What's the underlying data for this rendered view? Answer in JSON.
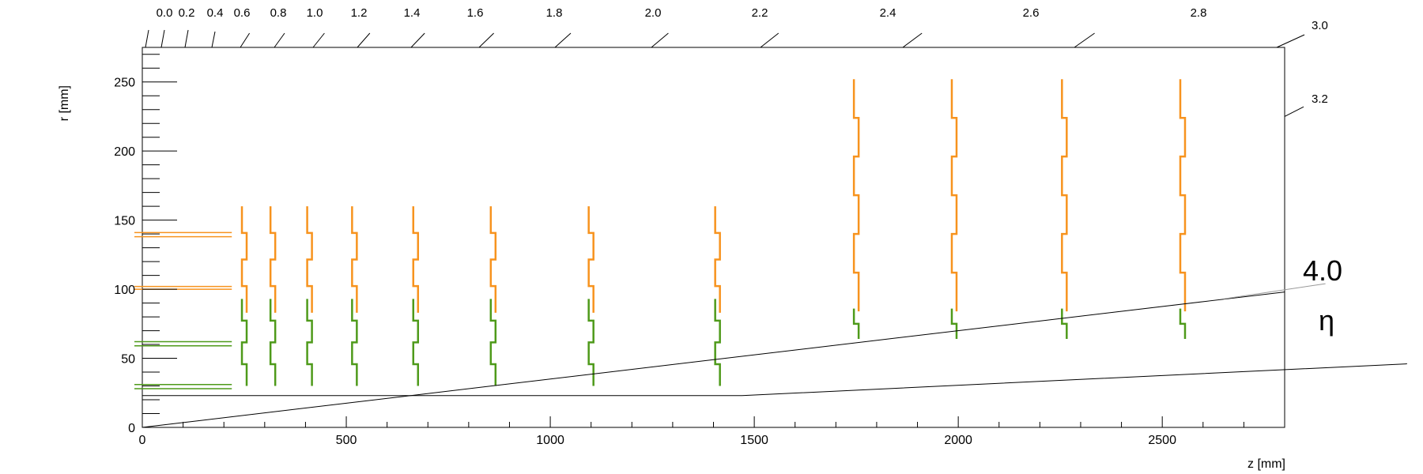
{
  "chart_data": {
    "type": "line",
    "xlabel": "z [mm]",
    "ylabel": "r [mm]",
    "xlim": [
      0,
      2800
    ],
    "ylim": [
      0,
      275
    ],
    "x_ticks": [
      0,
      500,
      1000,
      1500,
      2000,
      2500
    ],
    "y_ticks": [
      0,
      50,
      100,
      150,
      200,
      250
    ],
    "grid": false,
    "eta_scale": {
      "labels": [
        "0.0",
        "0.2",
        "0.4",
        "0.6",
        "0.8",
        "1.0",
        "1.2",
        "1.4",
        "1.6",
        "1.8",
        "2.0",
        "2.2",
        "2.4",
        "2.6",
        "2.8",
        "3.0",
        "3.2"
      ],
      "right_labels": [
        "3.0",
        "3.2"
      ],
      "highlight_value": "4.0",
      "highlight_symbol": "η"
    },
    "colors": {
      "orange": "#f7931e",
      "green": "#4e9a1a",
      "axis": "#000000"
    },
    "barrel_layers": {
      "z_max": 200,
      "orange_r": [
        138,
        141,
        100,
        102
      ],
      "green_r": [
        59,
        62,
        28,
        31
      ]
    },
    "lines": [
      {
        "name": "",
        "x": [
          0,
          2800
        ],
        "y": [
          0,
          98
        ]
      },
      {
        "name": "",
        "x": [
          0,
          1470,
          3100
        ],
        "y": [
          23,
          23,
          46
        ]
      }
    ],
    "disks": {
      "inner_z": [
        250,
        320,
        410,
        520,
        670,
        860,
        1100,
        1410
      ],
      "inner_orange": {
        "r_min": 83,
        "r_max": 160
      },
      "inner_green": {
        "r_min": 30,
        "r_max": 93
      },
      "outer_z": [
        1750,
        1990,
        2260,
        2550
      ],
      "outer_orange": {
        "r_min": 84,
        "r_max": 252
      },
      "outer_green": {
        "r_min": 64,
        "r_max": 86
      }
    }
  }
}
